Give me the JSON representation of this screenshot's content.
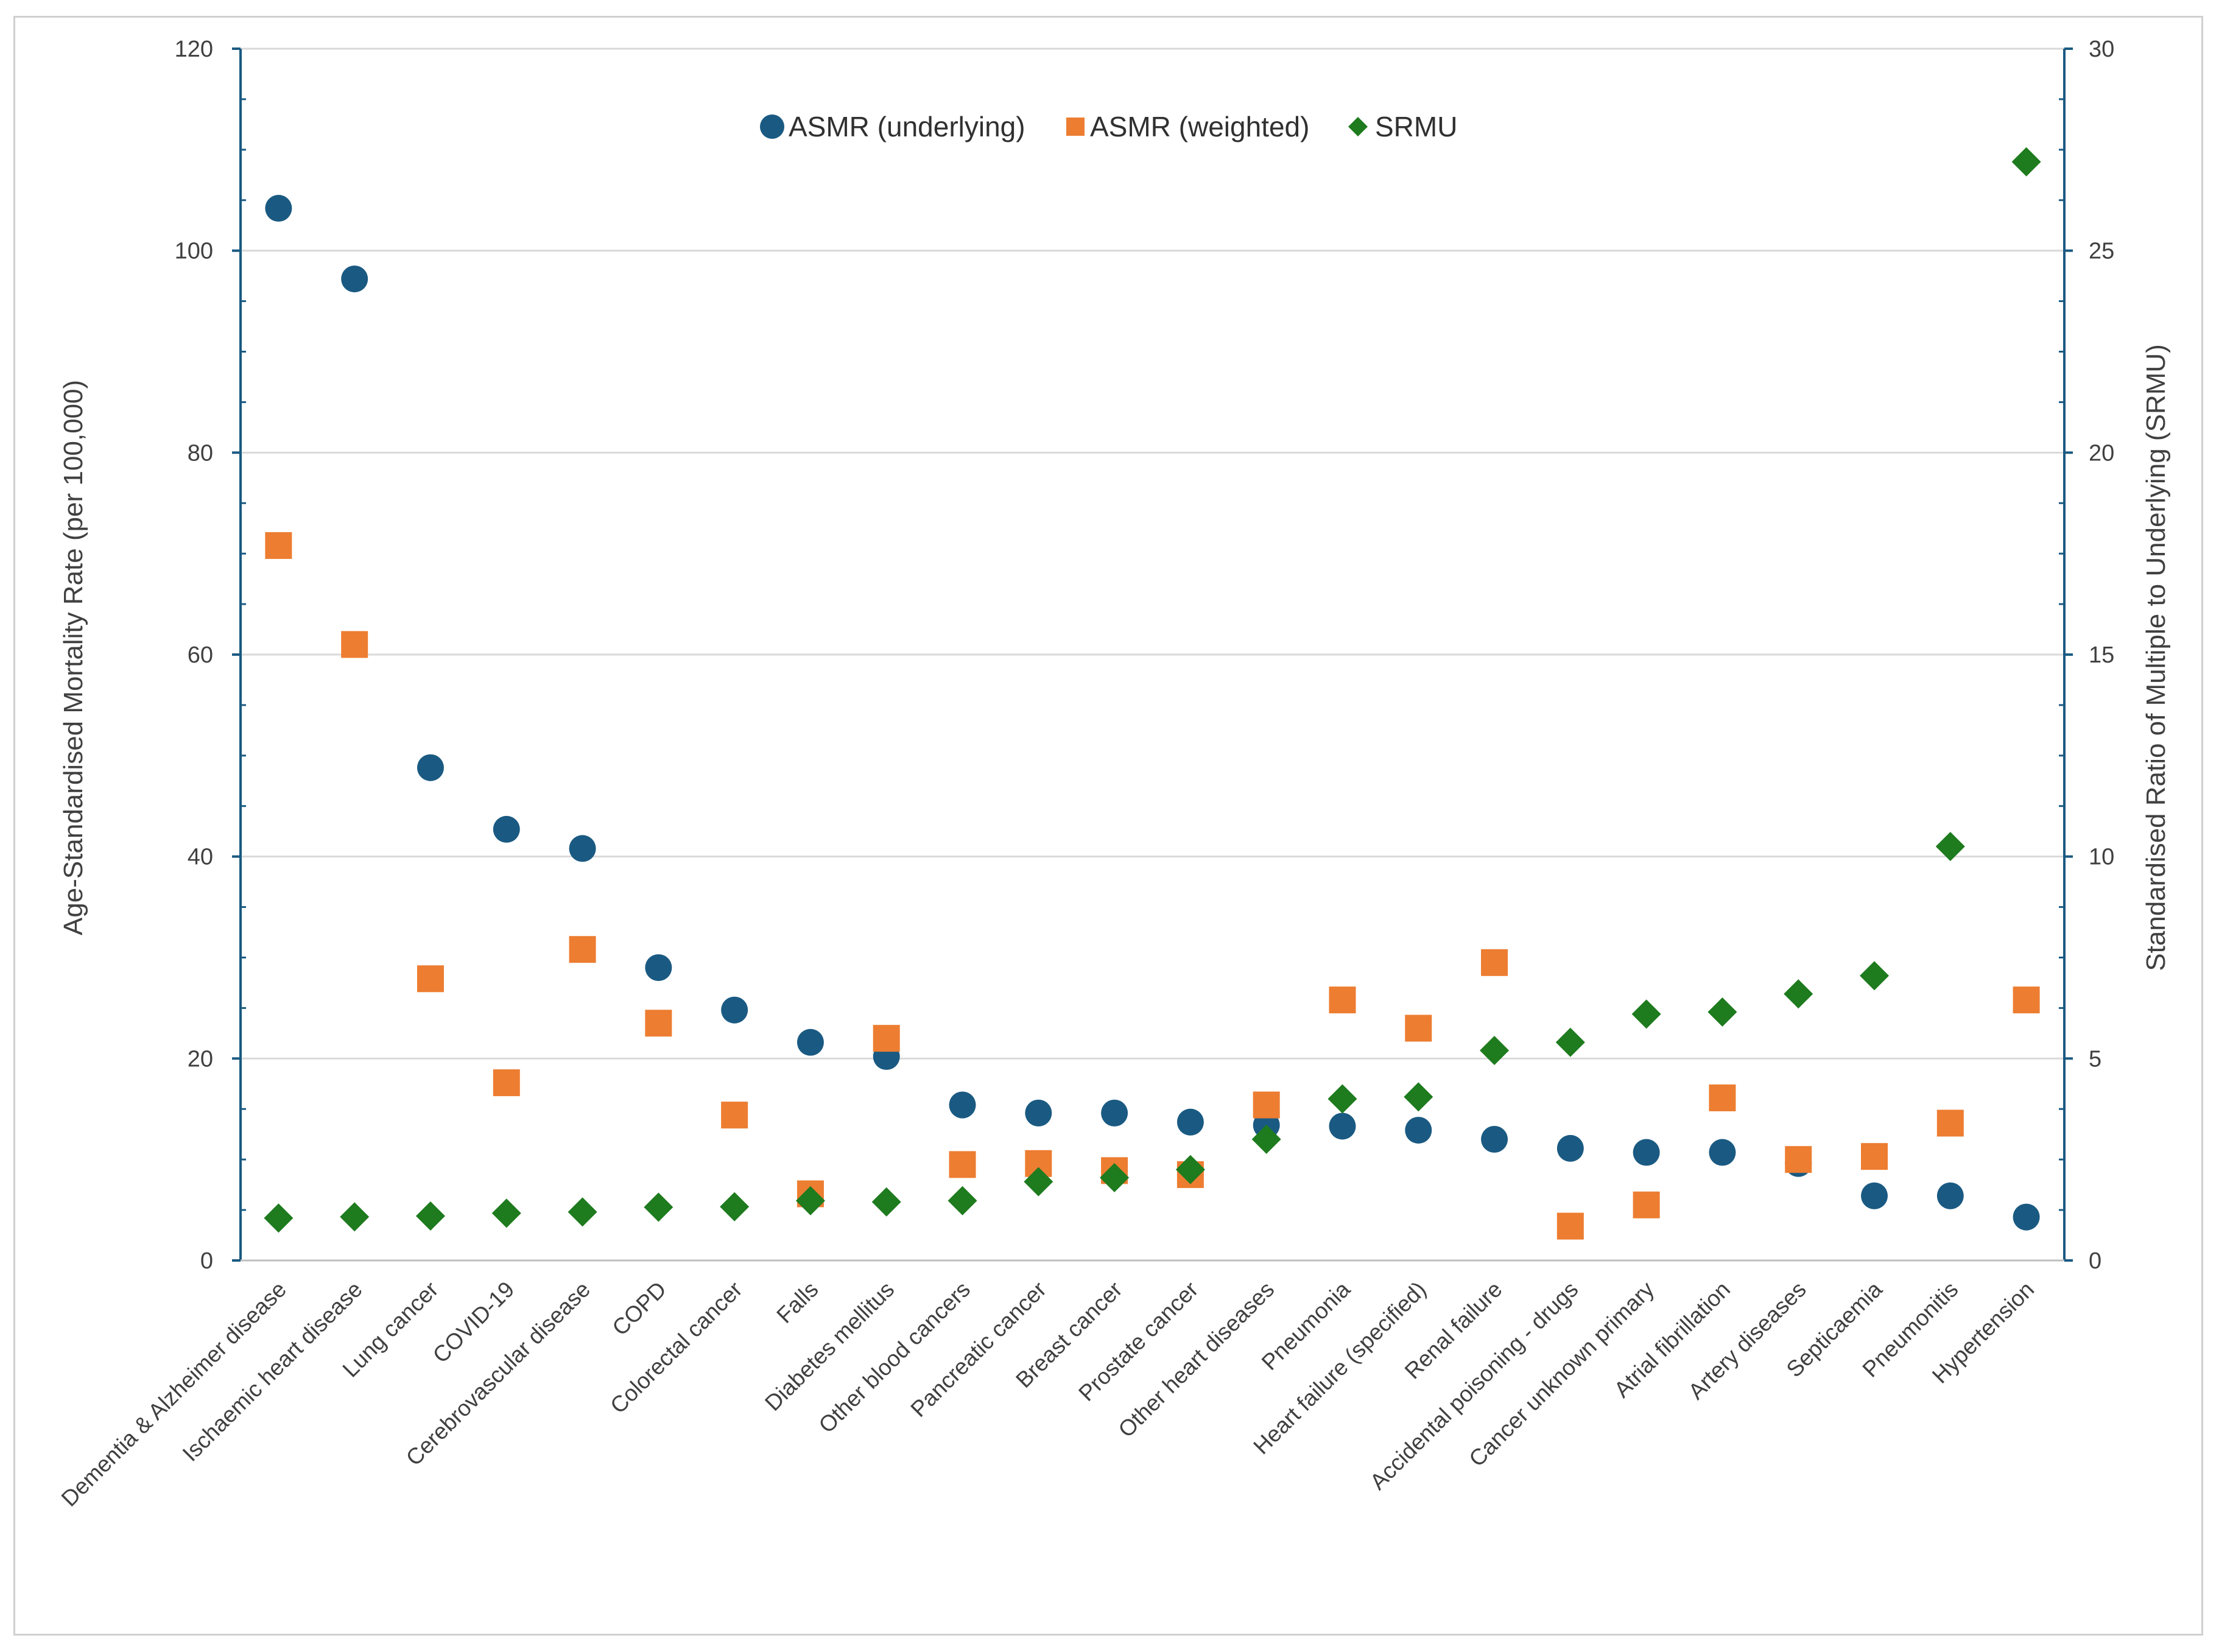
{
  "chart_data": {
    "type": "scatter",
    "title": "",
    "categories": [
      "Dementia & Alzheimer disease",
      "Ischaemic heart disease",
      "Lung cancer",
      "COVID-19",
      "Cerebrovascular disease",
      "COPD",
      "Colorectal cancer",
      "Falls",
      "Diabetes mellitus",
      "Other blood cancers",
      "Pancreatic cancer",
      "Breast cancer",
      "Prostate cancer",
      "Other heart diseases",
      "Pneumonia",
      "Heart failure (specified)",
      "Renal failure",
      "Accidental poisoning - drugs",
      "Cancer unknown primary",
      "Atrial fibrillation",
      "Artery diseases",
      "Septicaemia",
      "Pneumonitis",
      "Hypertension"
    ],
    "series": [
      {
        "name": "ASMR (underlying)",
        "axis": "left",
        "marker": "circle",
        "color": "#1a5a82",
        "values": [
          104.2,
          97.2,
          48.8,
          42.7,
          40.8,
          29.0,
          24.8,
          21.6,
          20.2,
          15.4,
          14.6,
          14.6,
          13.7,
          13.4,
          13.3,
          12.9,
          12.0,
          11.1,
          10.7,
          10.7,
          9.6,
          6.4,
          6.4,
          4.3
        ]
      },
      {
        "name": "ASMR (weighted)",
        "axis": "left",
        "marker": "square",
        "color": "#ed7d31",
        "values": [
          70.8,
          61.0,
          27.9,
          17.6,
          30.8,
          23.5,
          14.4,
          6.6,
          22.0,
          9.5,
          9.6,
          8.9,
          8.5,
          15.4,
          25.8,
          23.0,
          29.5,
          3.4,
          5.5,
          16.1,
          10.0,
          10.3,
          13.6,
          25.8
        ]
      },
      {
        "name": "SRMU",
        "axis": "right",
        "marker": "diamond",
        "color": "#1e7b1e",
        "values": [
          1.05,
          1.08,
          1.1,
          1.17,
          1.2,
          1.32,
          1.33,
          1.48,
          1.45,
          1.48,
          1.95,
          2.05,
          2.25,
          3.0,
          4.0,
          4.05,
          5.2,
          5.4,
          6.1,
          6.15,
          6.6,
          7.05,
          10.25,
          27.2
        ]
      }
    ],
    "y_left": {
      "label": "Age-Standardised Mortality Rate (per 100,000)",
      "lim": [
        0,
        120
      ],
      "ticks": [
        0,
        20,
        40,
        60,
        80,
        100,
        120
      ]
    },
    "y_right": {
      "label": "Standardised Ratio of Multiple to Underlying (SRMU)",
      "lim": [
        0,
        30
      ],
      "ticks": [
        0,
        5,
        10,
        15,
        20,
        25,
        30
      ]
    },
    "xlabel": "",
    "grid": true,
    "legend_position": "top-center"
  }
}
